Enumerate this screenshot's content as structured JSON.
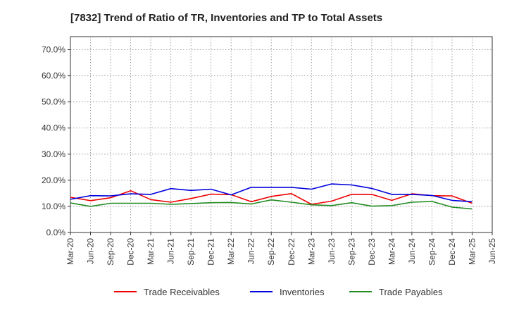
{
  "chart_data": {
    "type": "line",
    "title": "[7832]  Trend of Ratio of TR, Inventories and TP to Total Assets",
    "xlabel": "",
    "ylabel": "",
    "x": [
      "Mar-20",
      "Jun-20",
      "Sep-20",
      "Dec-20",
      "Mar-21",
      "Jun-21",
      "Sep-21",
      "Dec-21",
      "Mar-22",
      "Jun-22",
      "Sep-22",
      "Dec-22",
      "Mar-23",
      "Jun-23",
      "Sep-23",
      "Dec-23",
      "Mar-24",
      "Jun-24",
      "Sep-24",
      "Dec-24",
      "Mar-25",
      "Jun-25"
    ],
    "ylim": [
      0,
      75
    ],
    "yticks": [
      0,
      10,
      20,
      30,
      40,
      50,
      60,
      70
    ],
    "ytick_labels": [
      "0.0%",
      "10.0%",
      "20.0%",
      "30.0%",
      "40.0%",
      "50.0%",
      "60.0%",
      "70.0%"
    ],
    "grid": true,
    "legend_position": "bottom",
    "series": [
      {
        "name": "Trade Receivables",
        "color": "#ee0000",
        "values": [
          13.5,
          12.2,
          13.3,
          16.0,
          12.6,
          11.6,
          13.0,
          14.7,
          14.5,
          11.8,
          13.8,
          14.9,
          10.8,
          12.0,
          14.6,
          14.6,
          12.3,
          14.8,
          14.1,
          14.0,
          11.2,
          null
        ]
      },
      {
        "name": "Inventories",
        "color": "#0000dd",
        "values": [
          12.7,
          14.1,
          14.0,
          14.8,
          14.6,
          16.8,
          16.1,
          16.6,
          14.4,
          17.3,
          17.3,
          17.3,
          16.6,
          18.6,
          18.2,
          16.9,
          14.6,
          14.6,
          14.2,
          12.3,
          11.8,
          null
        ]
      },
      {
        "name": "Trade Payables",
        "color": "#228b22",
        "values": [
          11.3,
          10.0,
          11.2,
          11.2,
          11.2,
          10.8,
          11.1,
          11.4,
          11.5,
          10.9,
          12.5,
          11.6,
          10.6,
          10.3,
          11.4,
          10.1,
          10.3,
          11.6,
          11.9,
          9.7,
          9.0,
          null
        ]
      }
    ]
  }
}
